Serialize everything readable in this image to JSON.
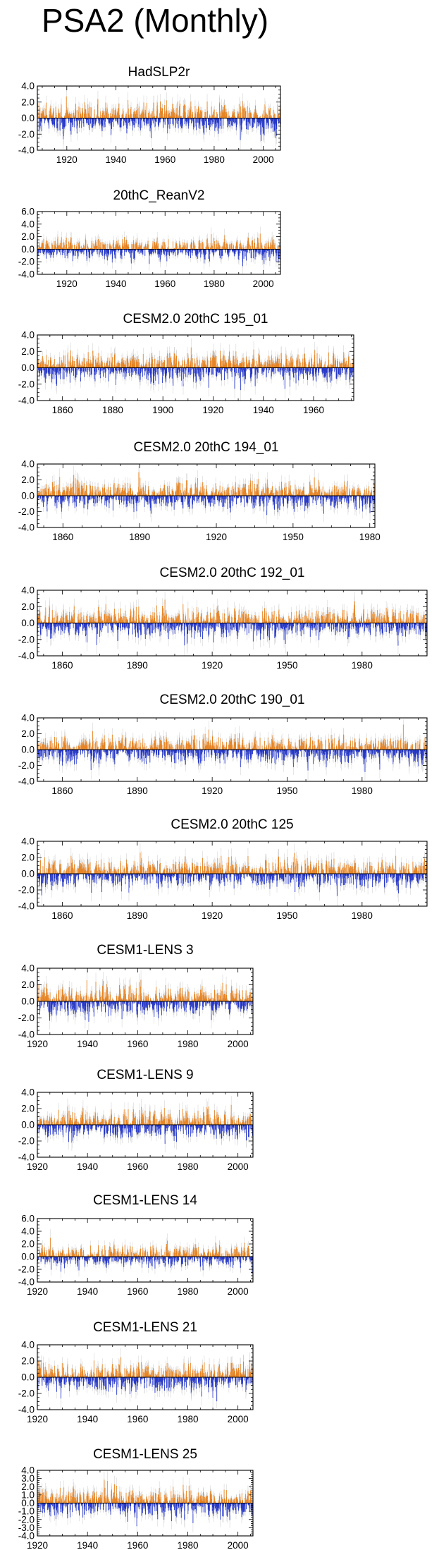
{
  "page": {
    "title": "PSA2 (Monthly)"
  },
  "colors": {
    "positive": "#e8821e",
    "negative": "#2234c8",
    "thin": "#b8b8b8",
    "axis": "#000000"
  },
  "chart_data": [
    {
      "type": "bar",
      "title": "HadSLP2r",
      "x_start": 1908,
      "x_end": 2007,
      "xticks": [
        1920,
        1940,
        1960,
        1980,
        2000
      ],
      "ylim": [
        -4.0,
        4.0
      ],
      "yticks": [
        4.0,
        2.0,
        0.0,
        -2.0,
        -4.0
      ],
      "seed": 11,
      "xlabel": "",
      "ylabel": ""
    },
    {
      "type": "bar",
      "title": "20thC_ReanV2",
      "x_start": 1908,
      "x_end": 2007,
      "xticks": [
        1920,
        1940,
        1960,
        1980,
        2000
      ],
      "ylim": [
        -4.0,
        6.0
      ],
      "yticks": [
        6.0,
        4.0,
        2.0,
        0.0,
        -2.0,
        -4.0
      ],
      "seed": 23,
      "xlabel": "",
      "ylabel": ""
    },
    {
      "type": "bar",
      "title": "CESM2.0 20thC 195_01",
      "x_start": 1850,
      "x_end": 1976,
      "xticks": [
        1860,
        1880,
        1900,
        1920,
        1940,
        1960
      ],
      "ylim": [
        -4.0,
        4.0
      ],
      "yticks": [
        4.0,
        2.0,
        0.0,
        -2.0,
        -4.0
      ],
      "seed": 37,
      "xlabel": "",
      "ylabel": ""
    },
    {
      "type": "bar",
      "title": "CESM2.0 20thC 194_01",
      "x_start": 1850,
      "x_end": 1982,
      "xticks": [
        1860,
        1890,
        1920,
        1950,
        1980
      ],
      "ylim": [
        -4.0,
        4.0
      ],
      "yticks": [
        4.0,
        2.0,
        0.0,
        -2.0,
        -4.0
      ],
      "seed": 41,
      "xlabel": "",
      "ylabel": ""
    },
    {
      "type": "bar",
      "title": "CESM2.0 20thC 192_01",
      "x_start": 1850,
      "x_end": 2006,
      "xticks": [
        1860,
        1890,
        1920,
        1950,
        1980
      ],
      "ylim": [
        -4.0,
        4.0
      ],
      "yticks": [
        4.0,
        2.0,
        0.0,
        -2.0,
        -4.0
      ],
      "seed": 53,
      "xlabel": "",
      "ylabel": ""
    },
    {
      "type": "bar",
      "title": "CESM2.0 20thC 190_01",
      "x_start": 1850,
      "x_end": 2006,
      "xticks": [
        1860,
        1890,
        1920,
        1950,
        1980
      ],
      "ylim": [
        -4.0,
        4.0
      ],
      "yticks": [
        4.0,
        2.0,
        0.0,
        -2.0,
        -4.0
      ],
      "seed": 67,
      "xlabel": "",
      "ylabel": ""
    },
    {
      "type": "bar",
      "title": "CESM2.0 20thC 125",
      "x_start": 1850,
      "x_end": 2006,
      "xticks": [
        1860,
        1890,
        1920,
        1950,
        1980
      ],
      "ylim": [
        -4.0,
        4.0
      ],
      "yticks": [
        4.0,
        2.0,
        0.0,
        -2.0,
        -4.0
      ],
      "seed": 71,
      "xlabel": "",
      "ylabel": ""
    },
    {
      "type": "bar",
      "title": "CESM1-LENS 3",
      "x_start": 1920,
      "x_end": 2006,
      "xticks": [
        1920,
        1940,
        1960,
        1980,
        2000
      ],
      "ylim": [
        -4.0,
        4.0
      ],
      "yticks": [
        4.0,
        2.0,
        0.0,
        -2.0,
        -4.0
      ],
      "seed": 83,
      "xlabel": "",
      "ylabel": ""
    },
    {
      "type": "bar",
      "title": "CESM1-LENS 9",
      "x_start": 1920,
      "x_end": 2006,
      "xticks": [
        1920,
        1940,
        1960,
        1980,
        2000
      ],
      "ylim": [
        -4.0,
        4.0
      ],
      "yticks": [
        4.0,
        2.0,
        0.0,
        -2.0,
        -4.0
      ],
      "seed": 97,
      "xlabel": "",
      "ylabel": ""
    },
    {
      "type": "bar",
      "title": "CESM1-LENS 14",
      "x_start": 1920,
      "x_end": 2006,
      "xticks": [
        1920,
        1940,
        1960,
        1980,
        2000
      ],
      "ylim": [
        -4.0,
        6.0
      ],
      "yticks": [
        6.0,
        4.0,
        2.0,
        0.0,
        -2.0,
        -4.0
      ],
      "seed": 101,
      "xlabel": "",
      "ylabel": ""
    },
    {
      "type": "bar",
      "title": "CESM1-LENS 21",
      "x_start": 1920,
      "x_end": 2006,
      "xticks": [
        1920,
        1940,
        1960,
        1980,
        2000
      ],
      "ylim": [
        -4.0,
        4.0
      ],
      "yticks": [
        4.0,
        2.0,
        0.0,
        -2.0,
        -4.0
      ],
      "seed": 113,
      "xlabel": "",
      "ylabel": ""
    },
    {
      "type": "bar",
      "title": "CESM1-LENS 25",
      "x_start": 1920,
      "x_end": 2006,
      "xticks": [
        1920,
        1940,
        1960,
        1980,
        2000
      ],
      "ylim": [
        -4.0,
        4.0
      ],
      "yticks": [
        4.0,
        3.0,
        2.0,
        1.0,
        0.0,
        -1.0,
        -2.0,
        -3.0,
        -4.0
      ],
      "seed": 127,
      "xlabel": "",
      "ylabel": ""
    }
  ]
}
